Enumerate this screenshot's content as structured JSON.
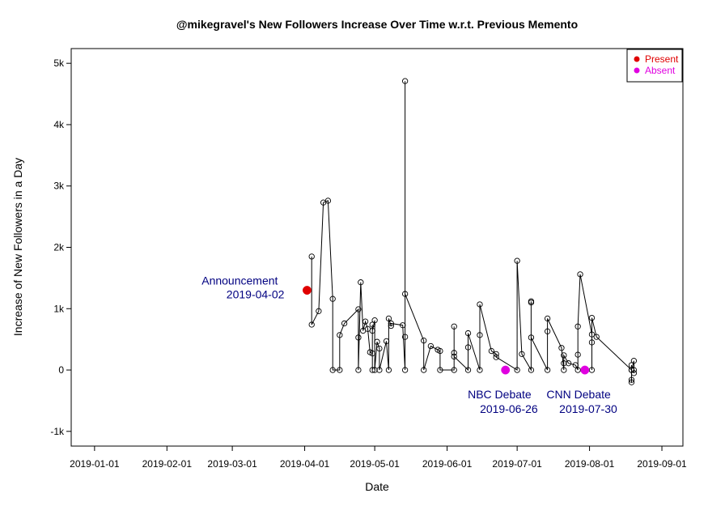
{
  "chart_data": {
    "type": "line",
    "title": "@mikegravel's New Followers Increase Over Time w.r.t. Previous Memento",
    "xlabel": "Date",
    "ylabel": "Increase of New Followers in a Day",
    "x_ticks": [
      "2019-01-01",
      "2019-02-01",
      "2019-03-01",
      "2019-04-01",
      "2019-05-01",
      "2019-06-01",
      "2019-07-01",
      "2019-08-01",
      "2019-09-01"
    ],
    "y_ticks": [
      -1000,
      0,
      1000,
      2000,
      3000,
      4000,
      5000
    ],
    "y_tick_labels": [
      "-1k",
      "0",
      "1k",
      "2k",
      "3k",
      "4k",
      "5k"
    ],
    "xlim": [
      "2018-12-22",
      "2019-09-10"
    ],
    "ylim": [
      -1240,
      5240
    ],
    "legend": {
      "position": "top-right",
      "entries": [
        {
          "label": "Present",
          "color": "#e00000"
        },
        {
          "label": "Absent",
          "color": "#e000e0"
        }
      ]
    },
    "series": [
      {
        "marker": "open-circle",
        "color": "#000000",
        "points": [
          {
            "x": "2019-04-04",
            "y": 1850
          },
          {
            "x": "2019-04-04",
            "y": 740
          },
          {
            "x": "2019-04-07",
            "y": 960
          },
          {
            "x": "2019-04-09",
            "y": 2730
          },
          {
            "x": "2019-04-11",
            "y": 2760
          },
          {
            "x": "2019-04-13",
            "y": 1160
          },
          {
            "x": "2019-04-13",
            "y": 0
          },
          {
            "x": "2019-04-16",
            "y": 0
          },
          {
            "x": "2019-04-16",
            "y": 570
          },
          {
            "x": "2019-04-18",
            "y": 760
          },
          {
            "x": "2019-04-24",
            "y": 990
          },
          {
            "x": "2019-04-24",
            "y": 530
          },
          {
            "x": "2019-04-24",
            "y": 0
          },
          {
            "x": "2019-04-25",
            "y": 1430
          },
          {
            "x": "2019-04-26",
            "y": 640
          },
          {
            "x": "2019-04-27",
            "y": 790
          },
          {
            "x": "2019-04-28",
            "y": 670
          },
          {
            "x": "2019-04-29",
            "y": 290
          },
          {
            "x": "2019-04-30",
            "y": 270
          },
          {
            "x": "2019-04-30",
            "y": 0
          },
          {
            "x": "2019-04-30",
            "y": 740
          },
          {
            "x": "2019-04-30",
            "y": 640
          },
          {
            "x": "2019-05-01",
            "y": 810
          },
          {
            "x": "2019-05-01",
            "y": 0
          },
          {
            "x": "2019-05-02",
            "y": 460
          },
          {
            "x": "2019-05-03",
            "y": 350
          },
          {
            "x": "2019-05-03",
            "y": 0
          },
          {
            "x": "2019-05-06",
            "y": 470
          },
          {
            "x": "2019-05-07",
            "y": 0
          },
          {
            "x": "2019-05-07",
            "y": 840
          },
          {
            "x": "2019-05-08",
            "y": 720
          },
          {
            "x": "2019-05-08",
            "y": 760
          },
          {
            "x": "2019-05-13",
            "y": 730
          },
          {
            "x": "2019-05-14",
            "y": 0
          },
          {
            "x": "2019-05-14",
            "y": 540
          },
          {
            "x": "2019-05-14",
            "y": 4710
          },
          {
            "x": "2019-05-14",
            "y": 1240
          },
          {
            "x": "2019-05-22",
            "y": 480
          },
          {
            "x": "2019-05-22",
            "y": 0
          },
          {
            "x": "2019-05-25",
            "y": 390
          },
          {
            "x": "2019-05-28",
            "y": 330
          },
          {
            "x": "2019-05-29",
            "y": 310
          },
          {
            "x": "2019-05-29",
            "y": 0
          },
          {
            "x": "2019-06-04",
            "y": 0
          },
          {
            "x": "2019-06-04",
            "y": 280
          },
          {
            "x": "2019-06-04",
            "y": 710
          },
          {
            "x": "2019-06-04",
            "y": 220
          },
          {
            "x": "2019-06-10",
            "y": 0
          },
          {
            "x": "2019-06-10",
            "y": 370
          },
          {
            "x": "2019-06-10",
            "y": 600
          },
          {
            "x": "2019-06-15",
            "y": 0
          },
          {
            "x": "2019-06-15",
            "y": 570
          },
          {
            "x": "2019-06-15",
            "y": 1070
          },
          {
            "x": "2019-06-20",
            "y": 310
          },
          {
            "x": "2019-06-22",
            "y": 260
          },
          {
            "x": "2019-06-22",
            "y": 210
          },
          {
            "x": "2019-07-01",
            "y": 0
          },
          {
            "x": "2019-07-01",
            "y": 1780
          },
          {
            "x": "2019-07-03",
            "y": 260
          },
          {
            "x": "2019-07-07",
            "y": 0
          },
          {
            "x": "2019-07-07",
            "y": 1120
          },
          {
            "x": "2019-07-07",
            "y": 1100
          },
          {
            "x": "2019-07-07",
            "y": 530
          },
          {
            "x": "2019-07-14",
            "y": 0
          },
          {
            "x": "2019-07-14",
            "y": 630
          },
          {
            "x": "2019-07-14",
            "y": 840
          },
          {
            "x": "2019-07-20",
            "y": 360
          },
          {
            "x": "2019-07-21",
            "y": 0
          },
          {
            "x": "2019-07-21",
            "y": 110
          },
          {
            "x": "2019-07-21",
            "y": 240
          },
          {
            "x": "2019-07-23",
            "y": 110
          },
          {
            "x": "2019-07-26",
            "y": 80
          },
          {
            "x": "2019-07-27",
            "y": 0
          },
          {
            "x": "2019-07-27",
            "y": 250
          },
          {
            "x": "2019-07-27",
            "y": 710
          },
          {
            "x": "2019-07-28",
            "y": 1560
          },
          {
            "x": "2019-08-02",
            "y": 580
          },
          {
            "x": "2019-08-02",
            "y": 450
          },
          {
            "x": "2019-08-02",
            "y": 0
          },
          {
            "x": "2019-08-02",
            "y": 850
          },
          {
            "x": "2019-08-04",
            "y": 540
          },
          {
            "x": "2019-08-19",
            "y": 0
          },
          {
            "x": "2019-08-19",
            "y": 80
          },
          {
            "x": "2019-08-19",
            "y": -160
          },
          {
            "x": "2019-08-19",
            "y": -200
          },
          {
            "x": "2019-08-19",
            "y": 0
          },
          {
            "x": "2019-08-20",
            "y": 150
          },
          {
            "x": "2019-08-20",
            "y": -50
          },
          {
            "x": "2019-08-20",
            "y": 0
          }
        ]
      }
    ],
    "events": [
      {
        "label": "Announcement",
        "date_label": "2019-04-02",
        "x": "2019-04-02",
        "y": 1300,
        "status": "Present",
        "color": "#e00000"
      },
      {
        "label": "NBC Debate",
        "date_label": "2019-06-26",
        "x": "2019-06-26",
        "y": 0,
        "status": "Absent",
        "color": "#e000e0"
      },
      {
        "label": "CNN Debate",
        "date_label": "2019-07-30",
        "x": "2019-07-30",
        "y": 0,
        "status": "Absent",
        "color": "#e000e0"
      }
    ],
    "annotation_color": "#000080",
    "grid": false
  }
}
